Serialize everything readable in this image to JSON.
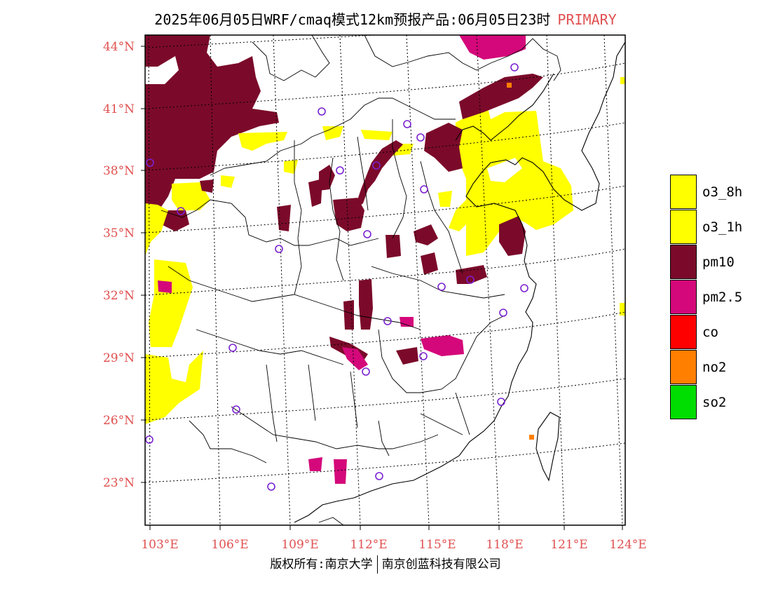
{
  "title": {
    "main": "2025年06月05日WRF/cmaq模式12km预报产品:06月05日23时",
    "tag": "PRIMARY",
    "tag_color": "#e05050"
  },
  "map": {
    "lat_labels": [
      "44°N",
      "41°N",
      "38°N",
      "35°N",
      "32°N",
      "29°N",
      "26°N",
      "23°N"
    ],
    "lon_labels": [
      "103°E",
      "106°E",
      "109°E",
      "112°E",
      "115°E",
      "118°E",
      "121°E",
      "124°E"
    ],
    "label_color": "#e05050",
    "station_marker_color": "#7a22d0"
  },
  "legend": {
    "items": [
      {
        "label": "o3_8h",
        "color": "#ffff00"
      },
      {
        "label": "o3_1h",
        "color": "#ffff00"
      },
      {
        "label": "pm10",
        "color": "#7b0a2a"
      },
      {
        "label": "pm2.5",
        "color": "#d4087a"
      },
      {
        "label": "co",
        "color": "#ff0000"
      },
      {
        "label": "no2",
        "color": "#ff8000"
      },
      {
        "label": "so2",
        "color": "#00dd00"
      }
    ]
  },
  "footer": {
    "left": "版权所有:南京大学",
    "right": "南京创蓝科技有限公司"
  }
}
